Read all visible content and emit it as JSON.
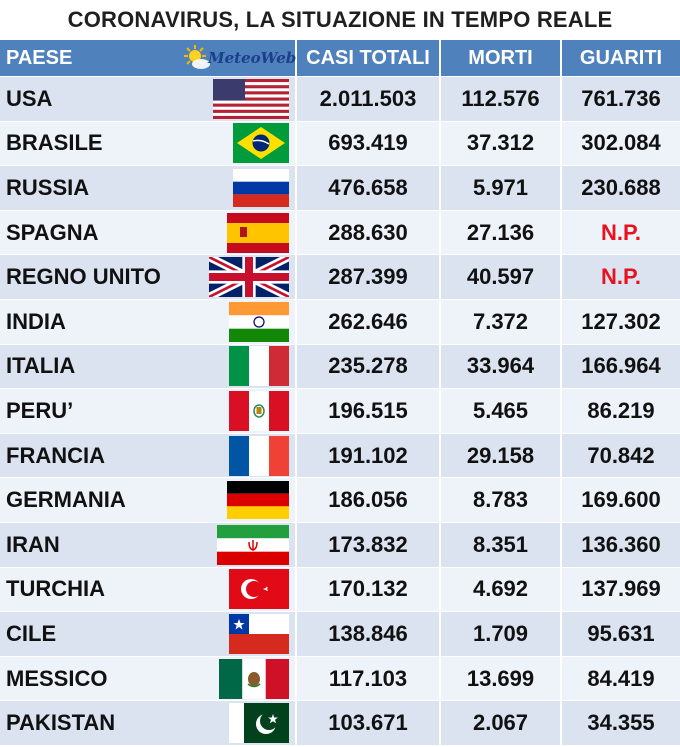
{
  "title": "CORONAVIRUS, LA SITUAZIONE IN TEMPO REALE",
  "logo": {
    "brand": "MeteoWeb",
    "icon": "sun-cloud-icon"
  },
  "headers": {
    "country": "PAESE",
    "cases": "CASI TOTALI",
    "deaths": "MORTI",
    "recovered": "GUARITI"
  },
  "colors": {
    "header_bg": "#4f81bd",
    "row_dark": "#dbe3f1",
    "row_light": "#eef2f9",
    "not_available": "#e8121e"
  },
  "rows": [
    {
      "country": "USA",
      "flag": "us-flag-icon",
      "cases": "2.011.503",
      "deaths": "112.576",
      "recovered": "761.736"
    },
    {
      "country": "BRASILE",
      "flag": "brazil-flag-icon",
      "cases": "693.419",
      "deaths": "37.312",
      "recovered": "302.084"
    },
    {
      "country": "RUSSIA",
      "flag": "russia-flag-icon",
      "cases": "476.658",
      "deaths": "5.971",
      "recovered": "230.688"
    },
    {
      "country": "SPAGNA",
      "flag": "spain-flag-icon",
      "cases": "288.630",
      "deaths": "27.136",
      "recovered": "N.P."
    },
    {
      "country": "REGNO UNITO",
      "flag": "uk-flag-icon",
      "cases": "287.399",
      "deaths": "40.597",
      "recovered": "N.P."
    },
    {
      "country": "INDIA",
      "flag": "india-flag-icon",
      "cases": "262.646",
      "deaths": "7.372",
      "recovered": "127.302"
    },
    {
      "country": "ITALIA",
      "flag": "italy-flag-icon",
      "cases": "235.278",
      "deaths": "33.964",
      "recovered": "166.964"
    },
    {
      "country": "PERU’",
      "flag": "peru-flag-icon",
      "cases": "196.515",
      "deaths": "5.465",
      "recovered": "86.219"
    },
    {
      "country": "FRANCIA",
      "flag": "france-flag-icon",
      "cases": "191.102",
      "deaths": "29.158",
      "recovered": "70.842"
    },
    {
      "country": "GERMANIA",
      "flag": "germany-flag-icon",
      "cases": "186.056",
      "deaths": "8.783",
      "recovered": "169.600"
    },
    {
      "country": "IRAN",
      "flag": "iran-flag-icon",
      "cases": "173.832",
      "deaths": "8.351",
      "recovered": "136.360"
    },
    {
      "country": "TURCHIA",
      "flag": "turkey-flag-icon",
      "cases": "170.132",
      "deaths": "4.692",
      "recovered": "137.969"
    },
    {
      "country": "CILE",
      "flag": "chile-flag-icon",
      "cases": "138.846",
      "deaths": "1.709",
      "recovered": "95.631"
    },
    {
      "country": "MESSICO",
      "flag": "mexico-flag-icon",
      "cases": "117.103",
      "deaths": "13.699",
      "recovered": "84.419"
    },
    {
      "country": "PAKISTAN",
      "flag": "pakistan-flag-icon",
      "cases": "103.671",
      "deaths": "2.067",
      "recovered": "34.355"
    }
  ]
}
